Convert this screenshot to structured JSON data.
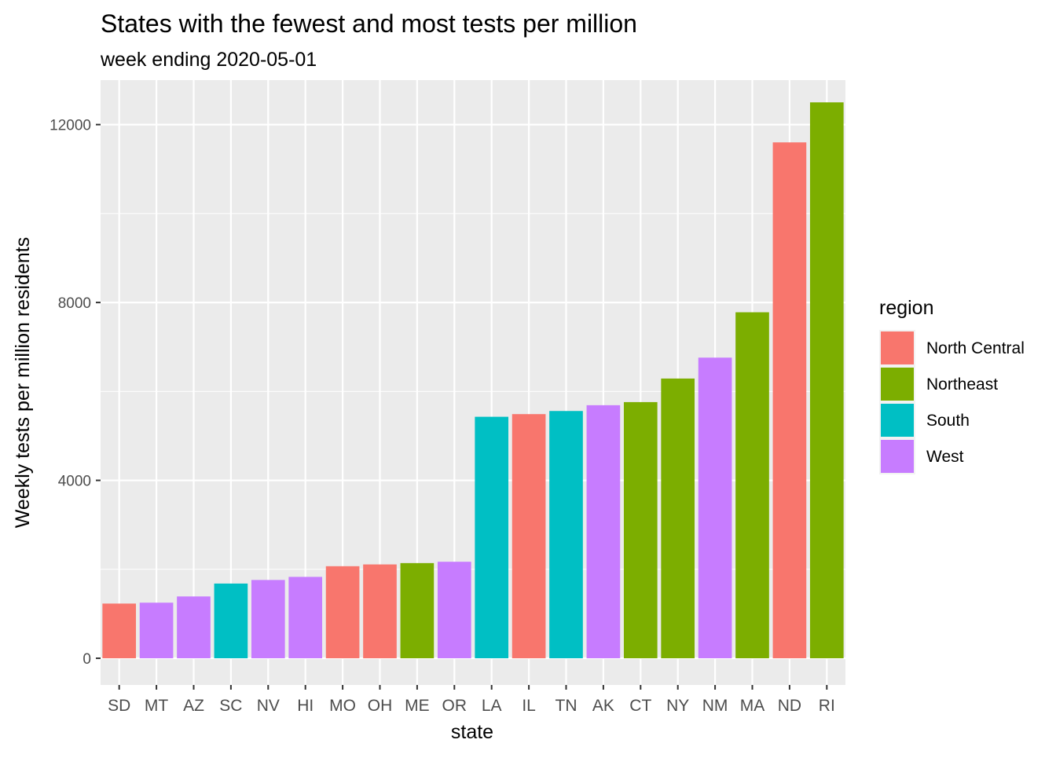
{
  "chart_data": {
    "type": "bar",
    "title": "States with the fewest and most tests per million",
    "subtitle": "week ending 2020-05-01",
    "xlabel": "state",
    "ylabel": "Weekly tests per million residents",
    "ylim": [
      -600,
      13000
    ],
    "yticks": [
      0,
      4000,
      8000,
      12000
    ],
    "grid": true,
    "legend_position": "right",
    "legend_title": "region",
    "categories": [
      "SD",
      "MT",
      "AZ",
      "SC",
      "NV",
      "HI",
      "MO",
      "OH",
      "ME",
      "OR",
      "LA",
      "IL",
      "TN",
      "AK",
      "CT",
      "NY",
      "NM",
      "MA",
      "ND",
      "RI"
    ],
    "values": [
      1230,
      1250,
      1390,
      1680,
      1760,
      1830,
      2070,
      2110,
      2140,
      2170,
      5430,
      5490,
      5560,
      5690,
      5760,
      6290,
      6760,
      7780,
      11600,
      12500
    ],
    "regions": [
      "North Central",
      "West",
      "West",
      "South",
      "West",
      "West",
      "North Central",
      "North Central",
      "Northeast",
      "West",
      "South",
      "North Central",
      "South",
      "West",
      "Northeast",
      "Northeast",
      "West",
      "Northeast",
      "North Central",
      "Northeast"
    ],
    "legend": [
      {
        "name": "North Central",
        "color": "#F8766D"
      },
      {
        "name": "Northeast",
        "color": "#7CAE00"
      },
      {
        "name": "South",
        "color": "#00BFC4"
      },
      {
        "name": "West",
        "color": "#C77CFF"
      }
    ]
  }
}
